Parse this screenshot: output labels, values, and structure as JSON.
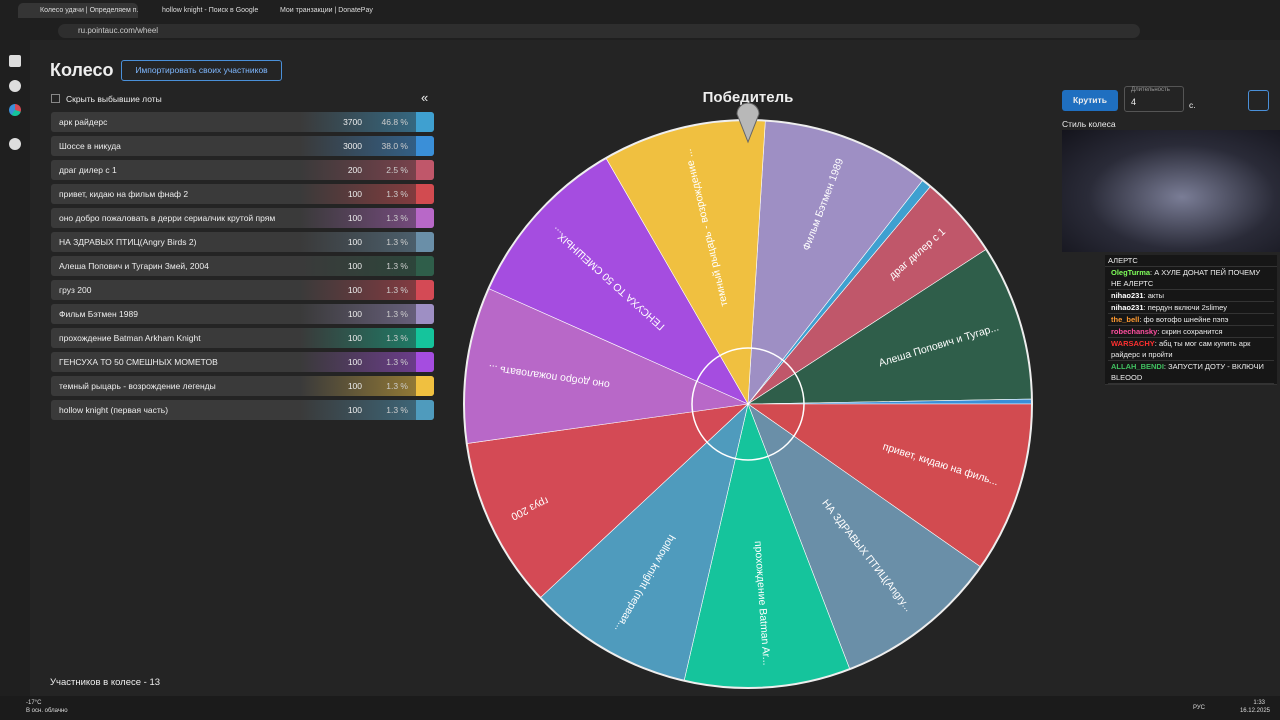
{
  "browser": {
    "tabs": [
      "Колесо удачи | Определяем п...",
      "hollow knight - Поиск в Google",
      "Мои транзакции | DonatePay"
    ],
    "url": "ru.pointauc.com/wheel"
  },
  "page": {
    "title": "Колесо",
    "import_button": "Импортировать своих участников",
    "hide_label": "Скрыть выбывшие лоты",
    "collapse": "«",
    "footer": "Участников в колесе - 13",
    "winner_title": "Победитель",
    "lots": [
      {
        "name": "арк райдерс",
        "amount": 3700,
        "percent": "46.8 %",
        "color": "#3fa0d0"
      },
      {
        "name": "Шоссе в никуда",
        "amount": 3000,
        "percent": "38.0 %",
        "color": "#3a8fd8"
      },
      {
        "name": "драг дилер с 1",
        "amount": 200,
        "percent": "2.5 %",
        "color": "#c0576a"
      },
      {
        "name": "привет, кидаю на фильм фнаф 2",
        "amount": 100,
        "percent": "1.3 %",
        "color": "#d24b50"
      },
      {
        "name": "оно добро пожаловать в дерри сериалчик крутой прям",
        "amount": 100,
        "percent": "1.3 %",
        "color": "#b868c8"
      },
      {
        "name": "НА ЗДРАВЫХ ПТИЦ(Angry Birds 2)",
        "amount": 100,
        "percent": "1.3 %",
        "color": "#6a8fa8"
      },
      {
        "name": "Алеша Попович и Тугарин Змей, 2004",
        "amount": 100,
        "percent": "1.3 %",
        "color": "#2f5e4a"
      },
      {
        "name": "груз 200",
        "amount": 100,
        "percent": "1.3 %",
        "color": "#d44a55"
      },
      {
        "name": "Фильм Бэтмен 1989",
        "amount": 100,
        "percent": "1.3 %",
        "color": "#9e8fc4"
      },
      {
        "name": "прохождение Batman Arkham Knight",
        "amount": 100,
        "percent": "1.3 %",
        "color": "#15c49c"
      },
      {
        "name": "ГЕНСУХА ТО 50 СМЕШНЫХ МОМЕТОВ",
        "amount": 100,
        "percent": "1.3 %",
        "color": "#a54de0"
      },
      {
        "name": "темный рыцарь - возрождение легенды",
        "amount": 100,
        "percent": "1.3 %",
        "color": "#f0c040"
      },
      {
        "name": "hollow knight (первая часть)",
        "amount": 100,
        "percent": "1.3 %",
        "color": "#4f9bbd"
      }
    ],
    "wheel_labels": [
      "Фильм Бэтмен 1989",
      "драг дилер с 1",
      "Алеша Попович и Тугар...",
      "привет, кидаю на филь...",
      "НА ЗДРАВЫХ ПТИЦ(Angry...",
      "прохождение Batman Ar...",
      "hollow knight (первая...",
      "груз 200",
      "оно добро пожаловать ...",
      "ГЕНСУХА ТО 50 СМЕШНЫХ...",
      "темный рыцарь - возрождение ..."
    ],
    "spin_button": "Крутить",
    "duration_label": "Длительность",
    "duration_value": "4",
    "duration_unit": "с.",
    "style_label": "Стиль колеса"
  },
  "chat": {
    "header": "АЛЕРТС",
    "messages": [
      {
        "user": "OlegTurma",
        "text": "А ХУЛЕ ДОНАТ ПЕЙ ПОЧЕМУ НЕ АЛЕРТС",
        "color": "#7fff5a"
      },
      {
        "user": "nihao231",
        "text": "акты",
        "color": "#ffffff"
      },
      {
        "user": "nihao231",
        "text": "пердун включи 2slimey",
        "color": "#ffffff"
      },
      {
        "user": "the_bell",
        "text": "фо вотофо шнейне пэпэ",
        "color": "#ff9a30"
      },
      {
        "user": "robechansky",
        "text": "скрин сохранится",
        "color": "#ff4fa0"
      },
      {
        "user": "WARSACHY",
        "text": "абц ты мог сам купить арк райдерс и пройти",
        "color": "#ff3030"
      },
      {
        "user": "ALLAH_BENDI",
        "text": "ЗАПУСТИ ДОТУ - ВКЛЮЧИ BLEOOD",
        "color": "#40c060"
      }
    ]
  },
  "taskbar": {
    "weather": "-17°C",
    "weather_desc": "В осн. облачно",
    "lang": "РУС",
    "time": "1:33",
    "date": "16.12.2025"
  }
}
